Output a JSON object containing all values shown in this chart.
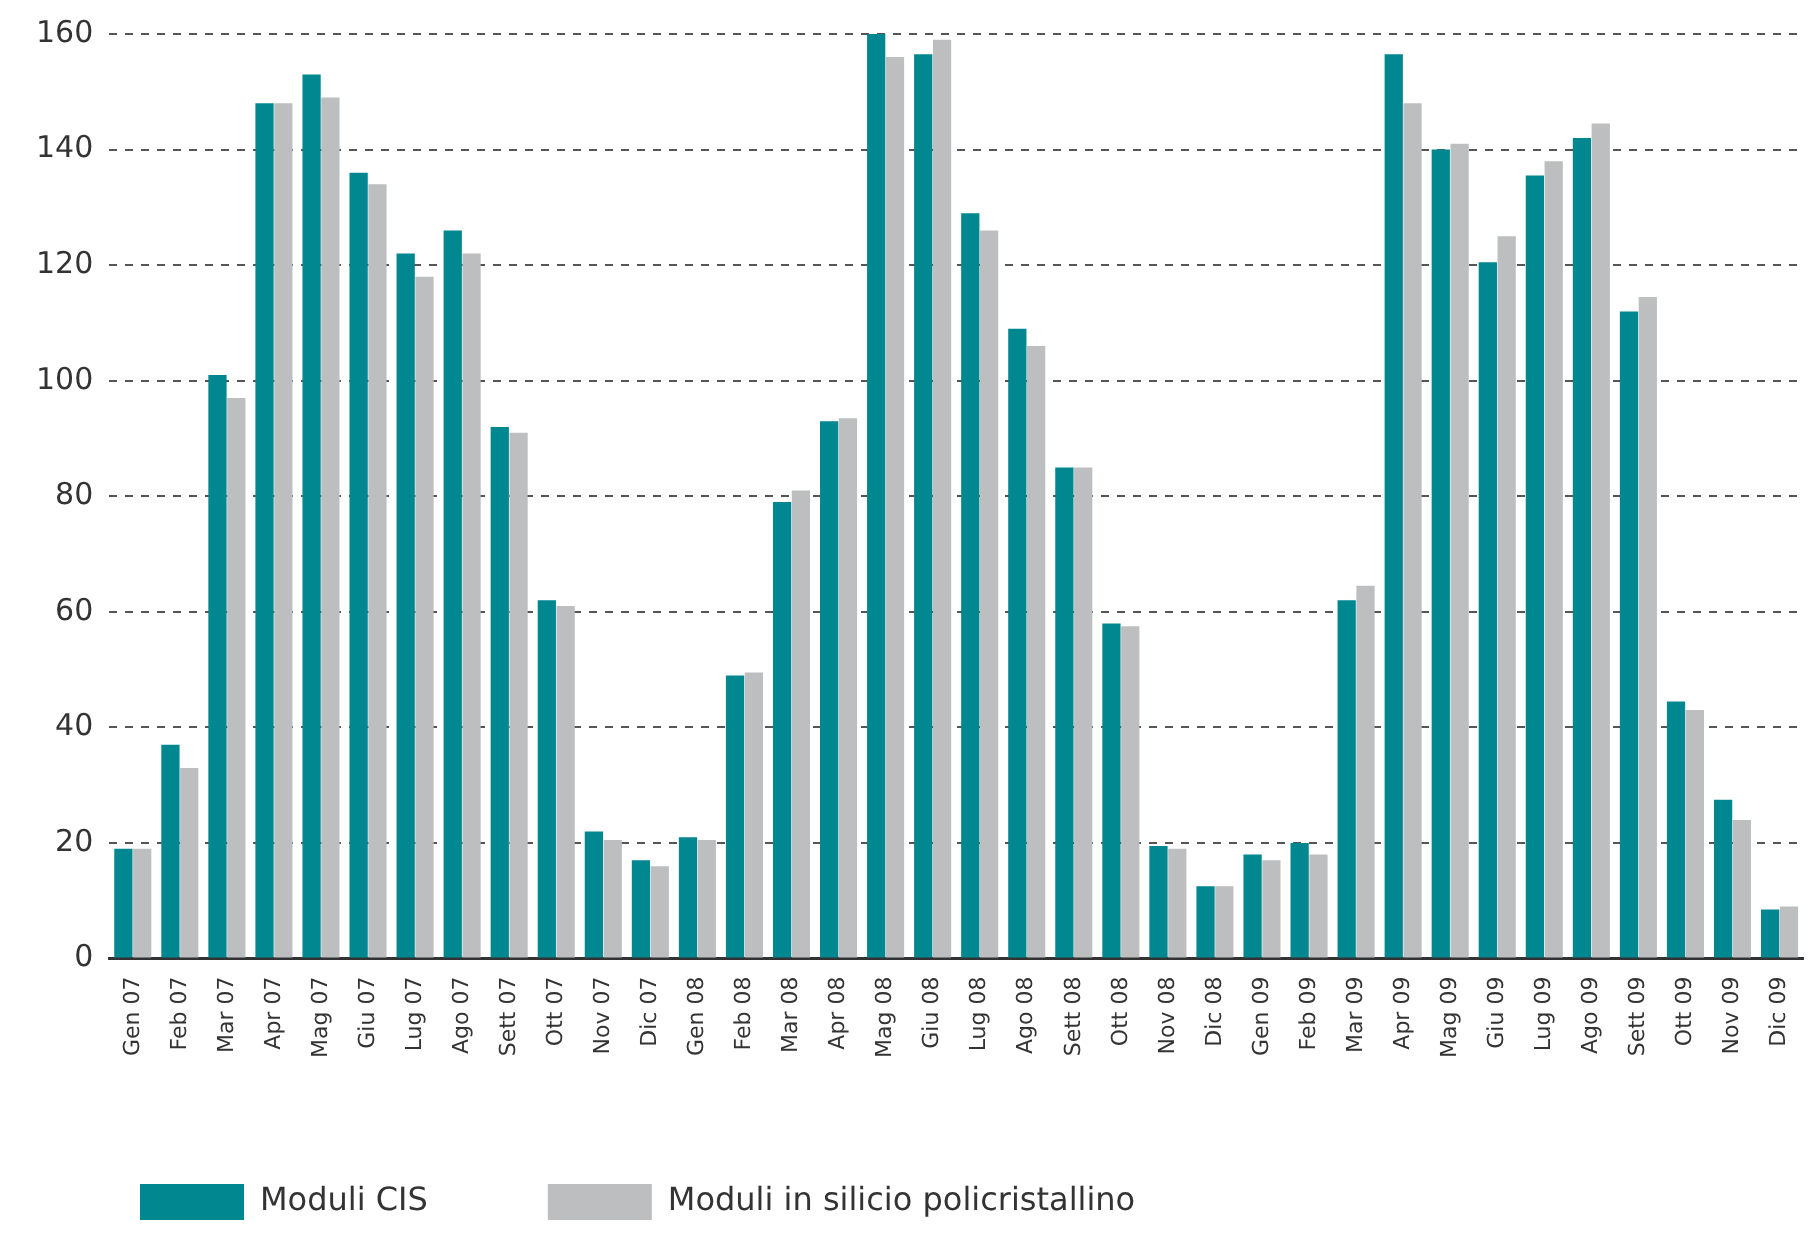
{
  "chart_data": {
    "type": "bar",
    "categories": [
      "Gen 07",
      "Feb 07",
      "Mar 07",
      "Apr 07",
      "Mag 07",
      "Giu 07",
      "Lug 07",
      "Ago 07",
      "Sett 07",
      "Ott 07",
      "Nov 07",
      "Dic 07",
      "Gen 08",
      "Feb 08",
      "Mar 08",
      "Apr 08",
      "Mag 08",
      "Giu 08",
      "Lug 08",
      "Ago 08",
      "Sett 08",
      "Ott 08",
      "Nov 08",
      "Dic 08",
      "Gen 09",
      "Feb 09",
      "Mar 09",
      "Apr 09",
      "Mag 09",
      "Giu 09",
      "Lug 09",
      "Ago 09",
      "Sett 09",
      "Ott 09",
      "Nov 09",
      "Dic 09"
    ],
    "series": [
      {
        "name": "Moduli CIS",
        "color": "#00878f",
        "values": [
          19,
          37,
          101,
          148,
          153,
          136,
          122,
          126,
          92,
          62,
          22,
          17,
          21,
          49,
          79,
          93,
          160,
          156.5,
          129,
          109,
          85,
          58,
          19.5,
          12.5,
          18,
          20,
          62,
          156.5,
          140,
          120.5,
          135.5,
          142,
          112,
          44.5,
          27.5,
          8.5
        ]
      },
      {
        "name": "Moduli in silicio policristallino",
        "color": "#bdbec0",
        "values": [
          19,
          33,
          97,
          148,
          149,
          134,
          118,
          122,
          91,
          61,
          20.5,
          16,
          20.5,
          49.5,
          81,
          93.5,
          156,
          159,
          126,
          106,
          85,
          57.5,
          19,
          12.5,
          17,
          18,
          64.5,
          148,
          141,
          125,
          138,
          144.5,
          114.5,
          43,
          24,
          9
        ]
      }
    ],
    "ylim": [
      0,
      160
    ],
    "yticks": [
      0,
      20,
      40,
      60,
      80,
      100,
      120,
      140,
      160
    ],
    "grid": "y",
    "legend": "bottom left"
  }
}
